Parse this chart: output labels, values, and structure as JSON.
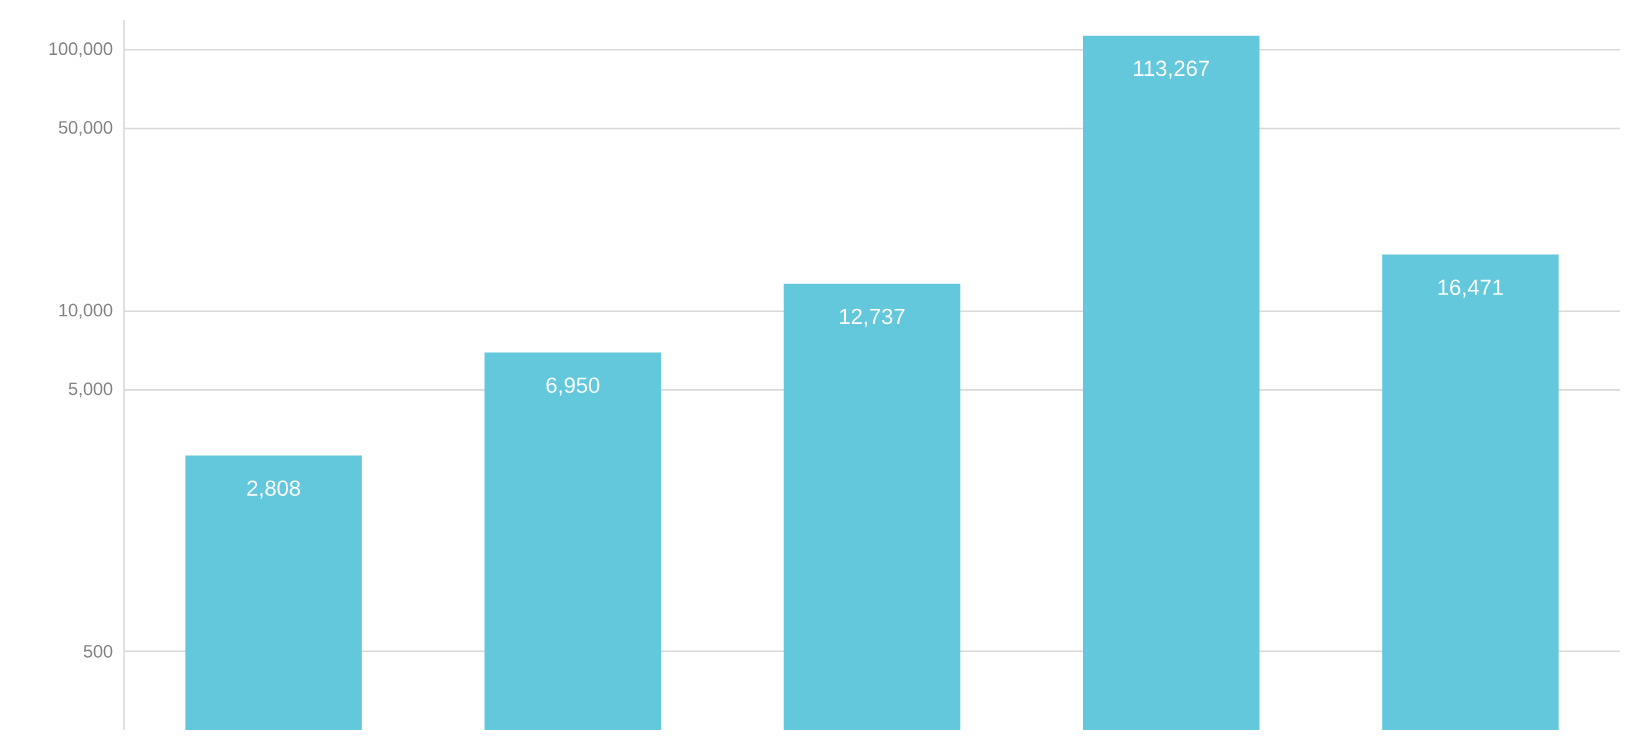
{
  "chart_data": {
    "type": "bar",
    "categories": [
      null,
      null,
      null,
      null,
      null
    ],
    "values": [
      2808,
      6950,
      12737,
      113267,
      16471
    ],
    "value_labels": [
      "2,808",
      "6,950",
      "12,737",
      "113,267",
      "16,471"
    ],
    "color": "#64c8dc",
    "log": "y",
    "grid": "y",
    "tick_labels": "y",
    "ylim": [
      250,
      130000
    ],
    "yticks": [
      {
        "value": 500,
        "label": "500"
      },
      {
        "value": 5000,
        "label": "5,000"
      },
      {
        "value": 10000,
        "label": "10,000"
      },
      {
        "value": 50000,
        "label": "50,000"
      },
      {
        "value": 100000,
        "label": "100,000"
      }
    ]
  }
}
